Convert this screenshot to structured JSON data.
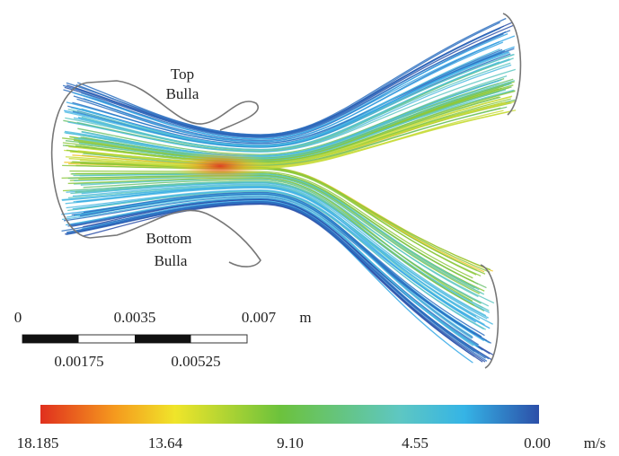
{
  "labels": {
    "top_bulla": [
      "Top",
      "Bulla"
    ],
    "bottom_bulla": [
      "Bottom",
      "Bulla"
    ]
  },
  "scale_bar": {
    "top": [
      "0",
      "0.0035",
      "0.007"
    ],
    "unit": "m",
    "bottom": [
      "0.00175",
      "0.00525"
    ]
  },
  "color_bar": {
    "ticks": [
      "18.185",
      "13.64",
      "9.10",
      "4.55",
      "0.00"
    ],
    "unit": "m/s"
  }
}
